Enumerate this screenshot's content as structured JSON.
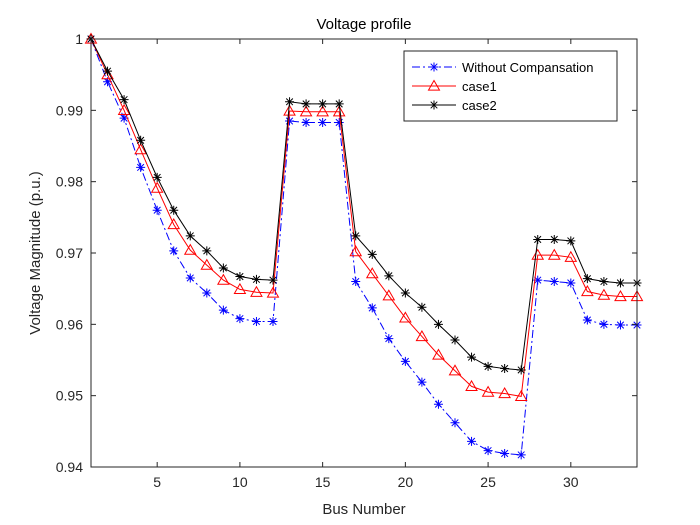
{
  "chart_data": {
    "type": "line",
    "title": "Voltage profile",
    "xlabel": "Bus Number",
    "ylabel": "Voltage Magnitude (p.u.)",
    "xlim": [
      1,
      34
    ],
    "ylim": [
      0.94,
      1.0
    ],
    "xticks": [
      5,
      10,
      15,
      20,
      25,
      30
    ],
    "yticks": [
      0.94,
      0.95,
      0.96,
      0.97,
      0.98,
      0.99,
      1
    ],
    "ytick_labels": [
      "0.94",
      "0.95",
      "0.96",
      "0.97",
      "0.98",
      "0.99",
      "1"
    ],
    "grid": false,
    "legend_position": "top-right",
    "x": [
      1,
      2,
      3,
      4,
      5,
      6,
      7,
      8,
      9,
      10,
      11,
      12,
      13,
      14,
      15,
      16,
      17,
      18,
      19,
      20,
      21,
      22,
      23,
      24,
      25,
      26,
      27,
      28,
      29,
      30,
      31,
      32,
      33,
      34
    ],
    "series": [
      {
        "name": "Without Compansation",
        "color": "#0000ff",
        "line_style": "dash-dot",
        "marker": "asterisk",
        "values": [
          1.0,
          0.994,
          0.9889,
          0.982,
          0.976,
          0.9703,
          0.9665,
          0.9644,
          0.962,
          0.9608,
          0.9604,
          0.9604,
          0.9885,
          0.9883,
          0.9883,
          0.9883,
          0.966,
          0.9623,
          0.958,
          0.9548,
          0.9519,
          0.9488,
          0.9462,
          0.9436,
          0.9423,
          0.9419,
          0.9417,
          0.9662,
          0.966,
          0.9658,
          0.9606,
          0.96,
          0.9599,
          0.9599
        ]
      },
      {
        "name": "case1",
        "color": "#ff0000",
        "line_style": "solid",
        "marker": "triangle",
        "values": [
          1.0,
          0.995,
          0.99,
          0.9845,
          0.9791,
          0.974,
          0.9704,
          0.9683,
          0.9662,
          0.9649,
          0.9645,
          0.9644,
          0.9899,
          0.9898,
          0.9898,
          0.9898,
          0.9702,
          0.9671,
          0.964,
          0.9609,
          0.9583,
          0.9557,
          0.9535,
          0.9513,
          0.9505,
          0.9503,
          0.9499,
          0.9697,
          0.9697,
          0.9694,
          0.9646,
          0.9641,
          0.9639,
          0.9639
        ]
      },
      {
        "name": "case2",
        "color": "#000000",
        "line_style": "solid",
        "marker": "asterisk",
        "values": [
          1.0,
          0.9955,
          0.9915,
          0.9858,
          0.9806,
          0.976,
          0.9724,
          0.9703,
          0.9679,
          0.9667,
          0.9663,
          0.9662,
          0.9912,
          0.9909,
          0.9909,
          0.9909,
          0.9724,
          0.9698,
          0.9668,
          0.9644,
          0.9624,
          0.96,
          0.9578,
          0.9554,
          0.9541,
          0.9538,
          0.9536,
          0.9719,
          0.9719,
          0.9717,
          0.9664,
          0.966,
          0.9658,
          0.9658
        ]
      }
    ]
  }
}
